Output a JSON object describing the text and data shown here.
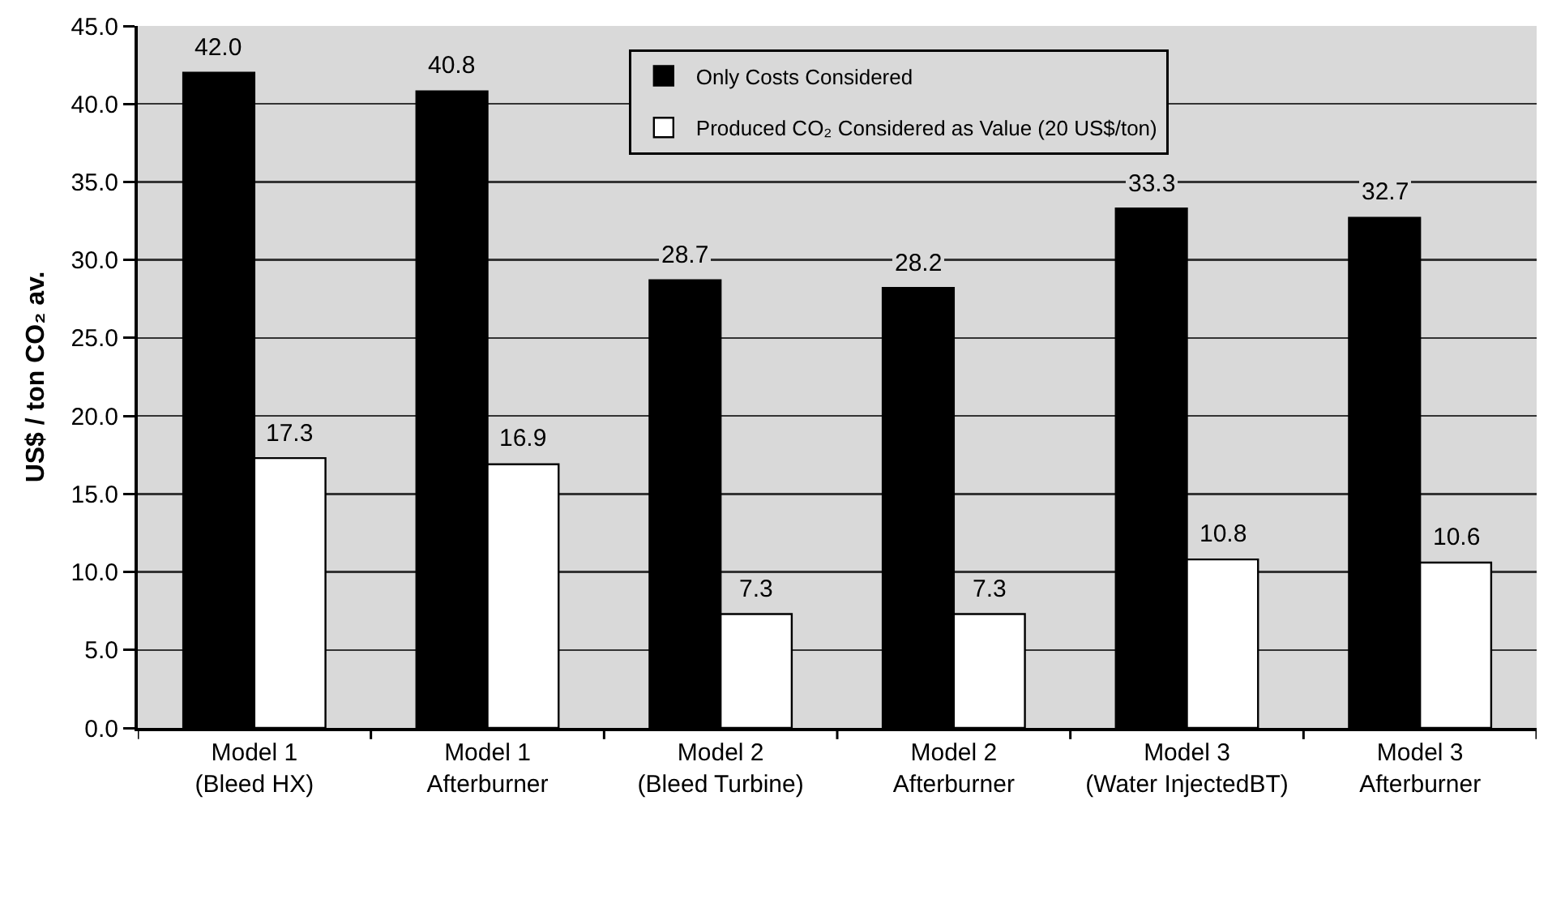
{
  "chart_data": {
    "type": "bar",
    "ylabel": "US$ / ton CO₂ av.",
    "categories": [
      "Model 1\n(Bleed HX)",
      "Model 1\nAfterburner",
      "Model 2\n(Bleed Turbine)",
      "Model 2\nAfterburner",
      "Model 3\n(Water InjectedBT)",
      "Model 3\nAfterburner"
    ],
    "series": [
      {
        "name": "Only Costs Considered",
        "color": "#000000",
        "values": [
          42.0,
          40.8,
          28.7,
          28.2,
          33.3,
          32.7
        ],
        "value_labels": [
          "42.0",
          "40.8",
          "28.7",
          "28.2",
          "33.3",
          "32.7"
        ]
      },
      {
        "name": "Produced CO₂ Considered as Value (20 US$/ton)",
        "color": "#ffffff",
        "values": [
          17.3,
          16.9,
          7.3,
          7.3,
          10.8,
          10.6
        ],
        "value_labels": [
          "17.3",
          "16.9",
          "7.3",
          "7.3",
          "10.8",
          "10.6"
        ]
      }
    ],
    "ylim": [
      0,
      45
    ],
    "yticks": [
      {
        "value": 0,
        "label": "0.0"
      },
      {
        "value": 5,
        "label": "5.0"
      },
      {
        "value": 10,
        "label": "10.0"
      },
      {
        "value": 15,
        "label": "15.0"
      },
      {
        "value": 20,
        "label": "20.0"
      },
      {
        "value": 25,
        "label": "25.0"
      },
      {
        "value": 30,
        "label": "30.0"
      },
      {
        "value": 35,
        "label": "35.0"
      },
      {
        "value": 40,
        "label": "40.0"
      },
      {
        "value": 45,
        "label": "45.0"
      }
    ],
    "grid": "y",
    "legend": "top"
  }
}
